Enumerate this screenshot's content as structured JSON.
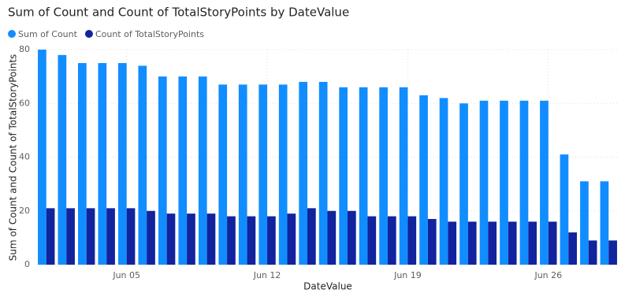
{
  "chart_data": {
    "type": "bar",
    "title": "Sum of Count and Count of TotalStoryPoints by DateValue",
    "x_label": "DateValue",
    "y_label": "Sum of Count and Count of TotalStoryPoints",
    "categories": [
      null,
      null,
      null,
      null,
      "Jun 05",
      null,
      null,
      null,
      null,
      null,
      null,
      "Jun 12",
      null,
      null,
      null,
      null,
      null,
      null,
      "Jun 19",
      null,
      null,
      null,
      null,
      null,
      null,
      "Jun 26",
      null,
      null,
      null
    ],
    "series": [
      {
        "name": "Sum of Count",
        "color": "#118dff",
        "values": [
          80,
          78,
          75,
          75,
          75,
          74,
          70,
          70,
          70,
          67,
          67,
          67,
          67,
          68,
          68,
          66,
          66,
          66,
          66,
          63,
          62,
          60,
          61,
          61,
          61,
          61,
          41,
          31,
          31
        ]
      },
      {
        "name": "Count of TotalStoryPoints",
        "color": "#12239e",
        "values": [
          21,
          21,
          21,
          21,
          21,
          20,
          19,
          19,
          19,
          18,
          18,
          18,
          19,
          21,
          20,
          20,
          18,
          18,
          18,
          17,
          16,
          16,
          16,
          16,
          16,
          16,
          12,
          9,
          9
        ]
      }
    ],
    "ylim": [
      0,
      80
    ],
    "yticks": [
      0,
      20,
      40,
      60,
      80
    ],
    "grid": true
  }
}
